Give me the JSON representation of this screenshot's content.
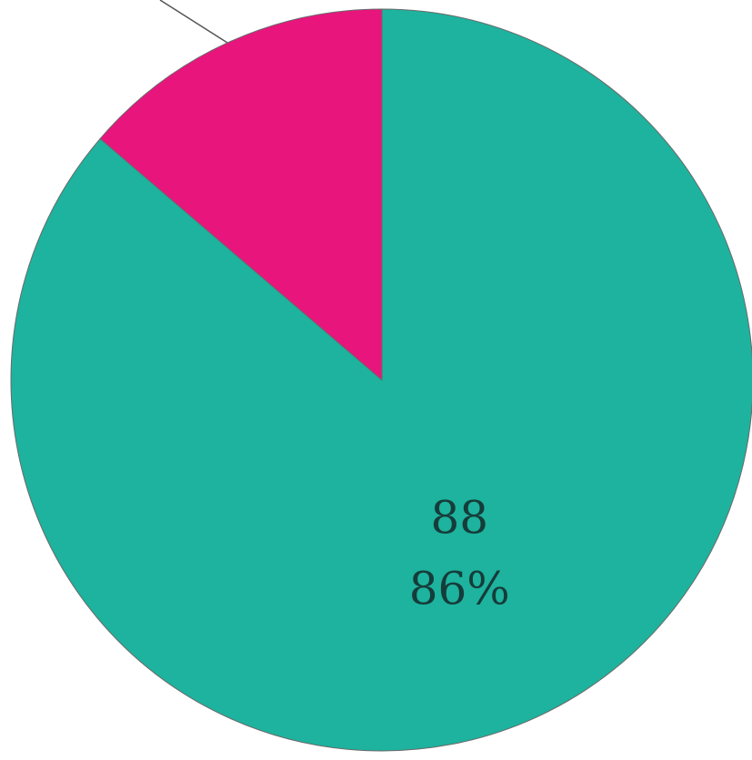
{
  "chart_data": {
    "type": "pie",
    "series": [
      {
        "values": [
          88,
          14
        ],
        "colors": [
          "#1db39e",
          "#e8157d"
        ],
        "value_labels": [
          "88",
          null
        ],
        "percents": [
          86,
          null
        ],
        "percent_labels": [
          "86%",
          null
        ]
      }
    ]
  }
}
